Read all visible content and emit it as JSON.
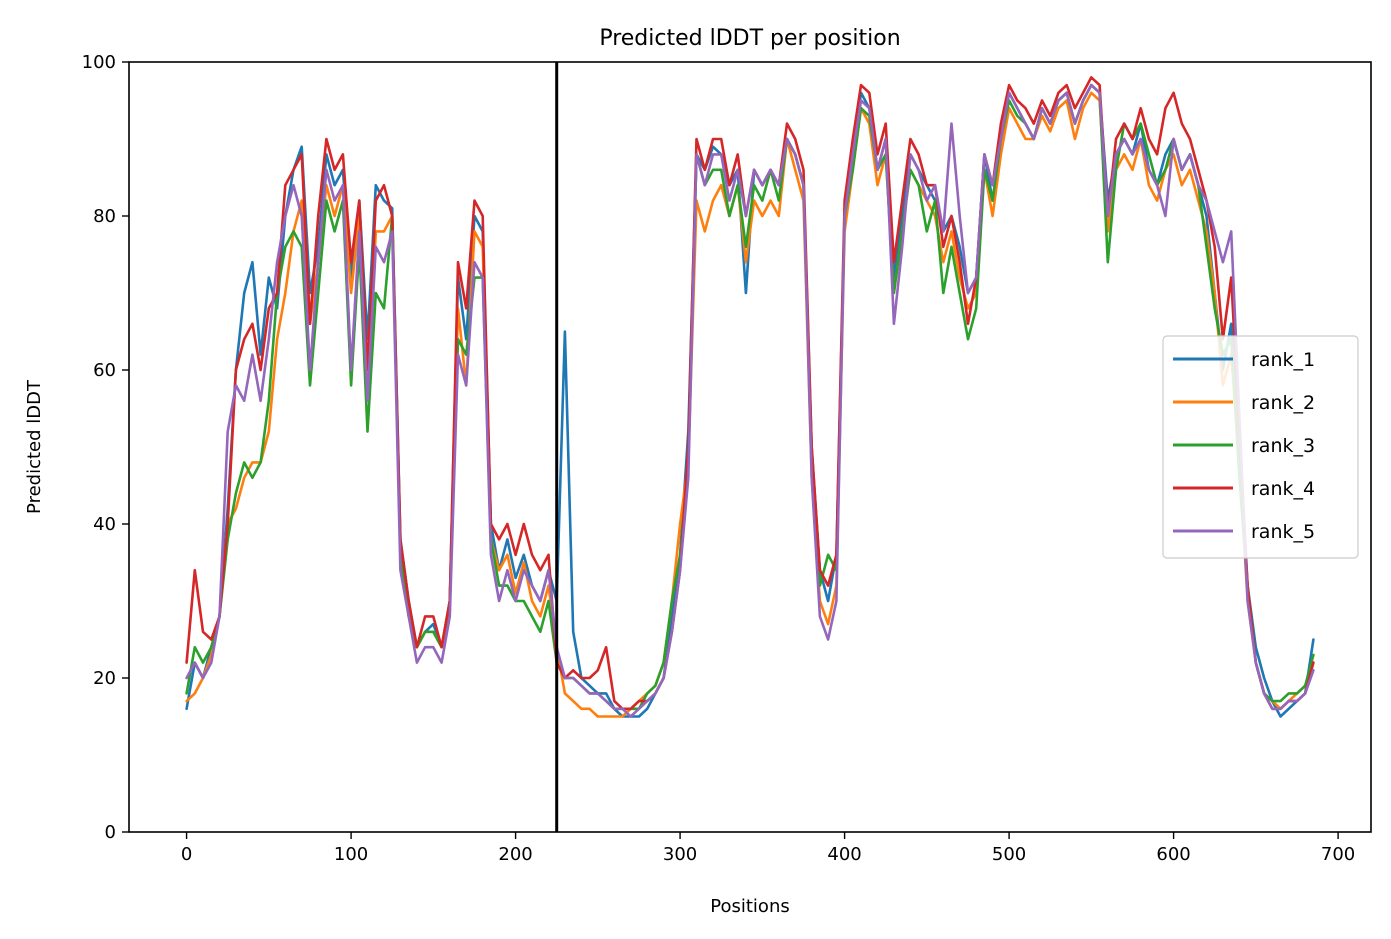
{
  "chart_data": {
    "type": "line",
    "title": "Predicted lDDT per position",
    "xlabel": "Positions",
    "ylabel": "Predicted lDDT",
    "xlim": [
      -35,
      720
    ],
    "ylim": [
      0,
      100
    ],
    "xticks": [
      0,
      100,
      200,
      300,
      400,
      500,
      600,
      700
    ],
    "yticks": [
      0,
      20,
      40,
      60,
      80,
      100
    ],
    "xtick_labels": [
      "0",
      "100",
      "200",
      "300",
      "400",
      "500",
      "600",
      "700"
    ],
    "ytick_labels": [
      "0",
      "20",
      "40",
      "60",
      "80",
      "100"
    ],
    "vline_x": 225,
    "legend_position": "center-right",
    "grid": false,
    "x": [
      0,
      5,
      10,
      15,
      20,
      25,
      30,
      35,
      40,
      45,
      50,
      55,
      60,
      65,
      70,
      75,
      80,
      85,
      90,
      95,
      100,
      105,
      110,
      115,
      120,
      125,
      130,
      135,
      140,
      145,
      150,
      155,
      160,
      165,
      170,
      175,
      180,
      185,
      190,
      195,
      200,
      205,
      210,
      215,
      220,
      225,
      230,
      235,
      240,
      245,
      250,
      255,
      260,
      265,
      270,
      275,
      280,
      285,
      290,
      295,
      300,
      305,
      310,
      315,
      320,
      325,
      330,
      335,
      340,
      345,
      350,
      355,
      360,
      365,
      370,
      375,
      380,
      385,
      390,
      395,
      400,
      405,
      410,
      415,
      420,
      425,
      430,
      435,
      440,
      445,
      450,
      455,
      460,
      465,
      470,
      475,
      480,
      485,
      490,
      495,
      500,
      505,
      510,
      515,
      520,
      525,
      530,
      535,
      540,
      545,
      550,
      555,
      560,
      565,
      570,
      575,
      580,
      585,
      590,
      595,
      600,
      605,
      610,
      615,
      620,
      625,
      630,
      635,
      640,
      645,
      650,
      655,
      660,
      665,
      670,
      675,
      680,
      685
    ],
    "series": [
      {
        "name": "rank_1",
        "color": "#1f77b4",
        "values": [
          16,
          22,
          20,
          24,
          28,
          42,
          60,
          70,
          74,
          62,
          72,
          68,
          80,
          86,
          89,
          70,
          76,
          88,
          84,
          86,
          72,
          82,
          64,
          84,
          82,
          81,
          38,
          30,
          24,
          26,
          27,
          24,
          30,
          72,
          64,
          80,
          78,
          40,
          34,
          38,
          33,
          36,
          32,
          30,
          34,
          30,
          65,
          26,
          20,
          19,
          18,
          18,
          16,
          15,
          15,
          15,
          16,
          18,
          20,
          28,
          36,
          52,
          88,
          86,
          89,
          88,
          84,
          86,
          70,
          86,
          84,
          86,
          84,
          90,
          88,
          84,
          50,
          34,
          30,
          36,
          80,
          88,
          96,
          94,
          86,
          90,
          72,
          80,
          88,
          86,
          84,
          82,
          78,
          80,
          76,
          70,
          72,
          88,
          82,
          90,
          96,
          94,
          92,
          90,
          94,
          92,
          95,
          96,
          92,
          95,
          97,
          96,
          82,
          88,
          90,
          88,
          92,
          86,
          84,
          88,
          90,
          86,
          88,
          84,
          80,
          70,
          60,
          66,
          50,
          32,
          24,
          20,
          17,
          15,
          16,
          17,
          18,
          25
        ]
      },
      {
        "name": "rank_2",
        "color": "#ff7f0e",
        "values": [
          17,
          18,
          20,
          23,
          28,
          40,
          42,
          46,
          48,
          48,
          52,
          64,
          70,
          78,
          82,
          66,
          74,
          84,
          80,
          84,
          70,
          80,
          56,
          78,
          78,
          80,
          36,
          28,
          24,
          26,
          26,
          24,
          30,
          68,
          58,
          78,
          76,
          38,
          34,
          36,
          31,
          35,
          30,
          28,
          32,
          24,
          18,
          17,
          16,
          16,
          15,
          15,
          15,
          15,
          16,
          17,
          18,
          19,
          22,
          30,
          40,
          48,
          82,
          78,
          82,
          84,
          80,
          84,
          74,
          82,
          80,
          82,
          80,
          90,
          86,
          82,
          46,
          30,
          27,
          32,
          78,
          86,
          94,
          92,
          84,
          88,
          70,
          78,
          86,
          84,
          82,
          80,
          74,
          78,
          72,
          68,
          70,
          86,
          80,
          88,
          94,
          92,
          90,
          90,
          93,
          91,
          94,
          95,
          90,
          94,
          96,
          95,
          78,
          86,
          88,
          86,
          90,
          84,
          82,
          86,
          88,
          84,
          86,
          82,
          78,
          70,
          58,
          62,
          48,
          30,
          22,
          18,
          17,
          16,
          17,
          18,
          19,
          22
        ]
      },
      {
        "name": "rank_3",
        "color": "#2ca02c",
        "values": [
          18,
          24,
          22,
          24,
          28,
          38,
          44,
          48,
          46,
          48,
          56,
          70,
          76,
          78,
          76,
          58,
          70,
          82,
          78,
          82,
          58,
          76,
          52,
          70,
          68,
          80,
          36,
          28,
          24,
          26,
          26,
          24,
          30,
          64,
          62,
          72,
          72,
          38,
          32,
          32,
          30,
          30,
          28,
          26,
          30,
          22,
          20,
          20,
          19,
          18,
          18,
          17,
          16,
          16,
          16,
          16,
          18,
          19,
          22,
          30,
          36,
          48,
          88,
          84,
          86,
          86,
          80,
          84,
          76,
          84,
          82,
          86,
          82,
          90,
          88,
          84,
          48,
          32,
          36,
          34,
          80,
          86,
          94,
          93,
          86,
          88,
          70,
          78,
          86,
          84,
          78,
          82,
          70,
          76,
          70,
          64,
          68,
          86,
          82,
          90,
          95,
          93,
          92,
          90,
          94,
          92,
          95,
          96,
          92,
          95,
          97,
          96,
          74,
          86,
          92,
          90,
          92,
          88,
          84,
          86,
          90,
          86,
          88,
          84,
          76,
          68,
          62,
          64,
          46,
          32,
          22,
          18,
          17,
          17,
          18,
          18,
          19,
          23
        ]
      },
      {
        "name": "rank_4",
        "color": "#d62728",
        "values": [
          22,
          34,
          26,
          25,
          28,
          40,
          60,
          64,
          66,
          60,
          68,
          70,
          84,
          86,
          88,
          66,
          80,
          90,
          86,
          88,
          74,
          82,
          60,
          82,
          84,
          80,
          38,
          30,
          24,
          28,
          28,
          24,
          30,
          74,
          68,
          82,
          80,
          40,
          38,
          40,
          36,
          40,
          36,
          34,
          36,
          22,
          20,
          21,
          20,
          20,
          21,
          24,
          17,
          16,
          16,
          17,
          17,
          18,
          20,
          26,
          34,
          50,
          90,
          86,
          90,
          90,
          84,
          88,
          80,
          86,
          84,
          86,
          84,
          92,
          90,
          86,
          50,
          34,
          32,
          36,
          82,
          90,
          97,
          96,
          88,
          92,
          74,
          82,
          90,
          88,
          84,
          84,
          76,
          80,
          74,
          66,
          72,
          88,
          84,
          92,
          97,
          95,
          94,
          92,
          95,
          93,
          96,
          97,
          94,
          96,
          98,
          97,
          80,
          90,
          92,
          90,
          94,
          90,
          88,
          94,
          96,
          92,
          90,
          86,
          82,
          76,
          64,
          72,
          52,
          32,
          22,
          18,
          16,
          16,
          17,
          17,
          18,
          22
        ]
      },
      {
        "name": "rank_5",
        "color": "#9467bd",
        "values": [
          20,
          22,
          20,
          22,
          28,
          52,
          58,
          56,
          62,
          56,
          64,
          74,
          80,
          84,
          80,
          60,
          74,
          86,
          82,
          84,
          60,
          78,
          56,
          76,
          74,
          78,
          34,
          28,
          22,
          24,
          24,
          22,
          28,
          62,
          58,
          74,
          72,
          36,
          30,
          34,
          30,
          34,
          32,
          30,
          34,
          24,
          20,
          20,
          19,
          18,
          18,
          17,
          16,
          16,
          15,
          16,
          17,
          18,
          20,
          26,
          34,
          46,
          88,
          84,
          88,
          88,
          82,
          86,
          80,
          86,
          84,
          86,
          84,
          90,
          88,
          84,
          46,
          28,
          25,
          30,
          80,
          88,
          95,
          94,
          86,
          90,
          66,
          76,
          88,
          86,
          82,
          84,
          78,
          92,
          80,
          70,
          72,
          88,
          84,
          90,
          96,
          94,
          92,
          90,
          94,
          92,
          95,
          96,
          92,
          95,
          97,
          96,
          80,
          88,
          90,
          88,
          90,
          86,
          84,
          80,
          90,
          86,
          88,
          84,
          82,
          78,
          74,
          78,
          54,
          30,
          22,
          18,
          16,
          16,
          17,
          17,
          18,
          21
        ]
      }
    ]
  }
}
